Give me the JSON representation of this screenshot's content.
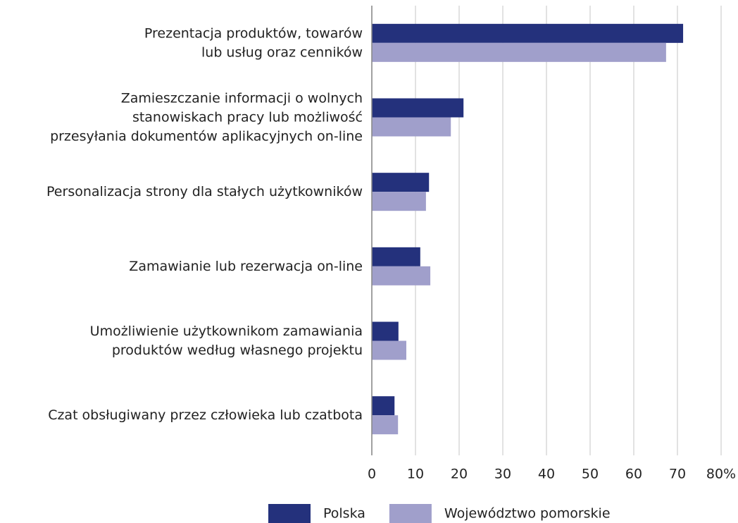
{
  "chart_data": {
    "type": "barh",
    "categories": [
      [
        "Prezentacja produktów, towarów",
        "lub usług oraz cenników"
      ],
      [
        "Zamieszczanie informacji o wolnych",
        "stanowiskach pracy lub możliwość",
        "przesyłania dokumentów aplikacyjnych on-line"
      ],
      [
        "Personalizacja strony dla stałych użytkowników"
      ],
      [
        "Zamawianie lub rezerwacja on-line"
      ],
      [
        "Umożliwienie użytkownikom zamawiania",
        "produktów według własnego projektu"
      ],
      [
        "Czat obsługiwany przez człowieka lub czatbota"
      ]
    ],
    "series": [
      {
        "name": "Polska",
        "color": "#24317c",
        "values": [
          71.3,
          21.0,
          13.1,
          11.1,
          6.1,
          5.2
        ]
      },
      {
        "name": "Województwo pomorskie",
        "color": "#a09fcb",
        "values": [
          67.4,
          18.1,
          12.4,
          13.4,
          7.9,
          6.0
        ]
      }
    ],
    "xlim": [
      0,
      80
    ],
    "xticks": [
      0,
      10,
      20,
      30,
      40,
      50,
      60,
      70,
      {
        "value": 80,
        "label": "80%"
      }
    ],
    "grid": true,
    "legend": "bottom"
  }
}
